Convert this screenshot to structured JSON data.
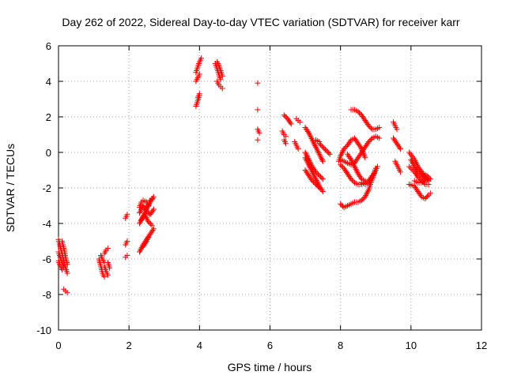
{
  "chart_data": {
    "type": "scatter",
    "title": "Day 262 of 2022, Sidereal Day-to-day VTEC variation (SDTVAR) for receiver karr",
    "xlabel": "GPS time / hours",
    "ylabel": "SDTVAR / TECUs",
    "xlim": [
      0,
      12
    ],
    "ylim": [
      -10,
      6
    ],
    "x_ticks": [
      0,
      2,
      4,
      6,
      8,
      10,
      12
    ],
    "y_ticks": [
      -10,
      -8,
      -6,
      -4,
      -2,
      0,
      2,
      4,
      6
    ],
    "grid": true,
    "marker": "+",
    "series_color": "#ff0000",
    "segments": [
      [
        [
          0.0,
          -4.9
        ],
        [
          0.05,
          -5.3
        ],
        [
          0.1,
          -5.7
        ],
        [
          0.15,
          -6.1
        ],
        [
          0.2,
          -6.5
        ],
        [
          0.25,
          -6.8
        ]
      ],
      [
        [
          0.0,
          -5.6
        ],
        [
          0.05,
          -5.9
        ],
        [
          0.1,
          -6.2
        ],
        [
          0.15,
          -6.5
        ]
      ],
      [
        [
          0.0,
          -6.1
        ],
        [
          0.05,
          -6.4
        ],
        [
          0.1,
          -6.6
        ]
      ],
      [
        [
          0.1,
          -5.0
        ],
        [
          0.15,
          -5.4
        ],
        [
          0.2,
          -5.9
        ],
        [
          0.25,
          -6.3
        ]
      ],
      [
        [
          0.15,
          -7.7
        ],
        [
          0.2,
          -7.8
        ],
        [
          0.25,
          -7.9
        ]
      ],
      [
        [
          1.15,
          -6.0
        ],
        [
          1.2,
          -6.4
        ],
        [
          1.25,
          -6.8
        ],
        [
          1.3,
          -7.0
        ]
      ],
      [
        [
          1.2,
          -5.8
        ],
        [
          1.25,
          -6.0
        ],
        [
          1.3,
          -6.2
        ]
      ],
      [
        [
          1.3,
          -6.4
        ],
        [
          1.35,
          -6.7
        ],
        [
          1.4,
          -6.9
        ]
      ],
      [
        [
          1.3,
          -5.7
        ],
        [
          1.35,
          -5.5
        ],
        [
          1.4,
          -5.4
        ]
      ],
      [
        [
          1.4,
          -6.2
        ],
        [
          1.45,
          -6.5
        ]
      ],
      [
        [
          1.9,
          -3.7
        ],
        [
          1.95,
          -3.5
        ]
      ],
      [
        [
          1.9,
          -5.2
        ],
        [
          1.95,
          -5.0
        ]
      ],
      [
        [
          1.9,
          -5.9
        ],
        [
          1.95,
          -5.8
        ]
      ],
      [
        [
          2.3,
          -4.0
        ],
        [
          2.4,
          -3.6
        ],
        [
          2.5,
          -3.2
        ],
        [
          2.6,
          -2.8
        ],
        [
          2.7,
          -2.5
        ]
      ],
      [
        [
          2.3,
          -3.1
        ],
        [
          2.35,
          -2.8
        ],
        [
          2.4,
          -2.7
        ],
        [
          2.5,
          -2.8
        ],
        [
          2.55,
          -3.0
        ],
        [
          2.6,
          -2.7
        ],
        [
          2.65,
          -2.6
        ]
      ],
      [
        [
          2.3,
          -3.4
        ],
        [
          2.4,
          -3.0
        ],
        [
          2.5,
          -3.3
        ],
        [
          2.6,
          -3.5
        ],
        [
          2.7,
          -3.2
        ]
      ],
      [
        [
          2.35,
          -3.8
        ],
        [
          2.45,
          -3.5
        ],
        [
          2.55,
          -3.9
        ],
        [
          2.65,
          -4.1
        ]
      ],
      [
        [
          2.3,
          -5.6
        ],
        [
          2.4,
          -5.2
        ],
        [
          2.5,
          -4.9
        ],
        [
          2.6,
          -4.6
        ],
        [
          2.7,
          -4.3
        ]
      ],
      [
        [
          2.4,
          -5.3
        ],
        [
          2.5,
          -5.0
        ],
        [
          2.55,
          -4.8
        ]
      ],
      [
        [
          3.9,
          2.6
        ],
        [
          3.95,
          2.9
        ],
        [
          4.0,
          3.2
        ]
      ],
      [
        [
          3.95,
          3.1
        ],
        [
          4.0,
          3.3
        ]
      ],
      [
        [
          3.9,
          4.5
        ],
        [
          3.95,
          4.8
        ],
        [
          4.0,
          5.1
        ],
        [
          4.05,
          5.3
        ]
      ],
      [
        [
          3.9,
          4.0
        ],
        [
          3.95,
          4.2
        ],
        [
          4.0,
          4.4
        ]
      ],
      [
        [
          4.45,
          5.0
        ],
        [
          4.5,
          4.7
        ],
        [
          4.55,
          4.4
        ],
        [
          4.6,
          4.1
        ]
      ],
      [
        [
          4.5,
          5.1
        ],
        [
          4.55,
          4.9
        ],
        [
          4.6,
          4.6
        ],
        [
          4.65,
          4.3
        ]
      ],
      [
        [
          4.5,
          4.0
        ],
        [
          4.55,
          3.8
        ],
        [
          4.6,
          3.7
        ],
        [
          4.65,
          3.6
        ]
      ],
      [
        [
          5.65,
          3.9
        ]
      ],
      [
        [
          5.65,
          2.4
        ]
      ],
      [
        [
          5.65,
          1.3
        ],
        [
          5.7,
          1.1
        ]
      ],
      [
        [
          5.65,
          0.7
        ]
      ],
      [
        [
          6.4,
          2.1
        ],
        [
          6.5,
          1.9
        ],
        [
          6.6,
          1.6
        ]
      ],
      [
        [
          6.35,
          1.2
        ],
        [
          6.4,
          1.0
        ],
        [
          6.45,
          0.9
        ]
      ],
      [
        [
          6.4,
          0.7
        ],
        [
          6.45,
          0.5
        ]
      ],
      [
        [
          6.75,
          1.9
        ],
        [
          6.8,
          1.8
        ],
        [
          6.85,
          1.7
        ]
      ],
      [
        [
          6.7,
          0.6
        ],
        [
          6.75,
          0.4
        ],
        [
          6.8,
          0.2
        ]
      ],
      [
        [
          7.0,
          1.4
        ],
        [
          7.1,
          1.1
        ],
        [
          7.2,
          0.7
        ],
        [
          7.3,
          0.3
        ],
        [
          7.4,
          -0.1
        ],
        [
          7.5,
          -0.5
        ]
      ],
      [
        [
          7.0,
          -0.3
        ],
        [
          7.1,
          -0.7
        ],
        [
          7.2,
          -1.1
        ],
        [
          7.3,
          -1.5
        ],
        [
          7.4,
          -1.9
        ],
        [
          7.5,
          -2.2
        ]
      ],
      [
        [
          7.0,
          -1.0
        ],
        [
          7.1,
          -1.3
        ],
        [
          7.2,
          -1.6
        ],
        [
          7.3,
          -1.8
        ],
        [
          7.4,
          -2.0
        ]
      ],
      [
        [
          7.0,
          0.0
        ],
        [
          7.1,
          -0.4
        ],
        [
          7.2,
          -0.8
        ],
        [
          7.3,
          -1.1
        ],
        [
          7.4,
          -1.3
        ],
        [
          7.5,
          -1.5
        ]
      ],
      [
        [
          7.4,
          0.5
        ],
        [
          7.5,
          0.3
        ],
        [
          7.6,
          0.1
        ],
        [
          7.7,
          -0.1
        ]
      ],
      [
        [
          7.3,
          0.7
        ],
        [
          7.4,
          0.6
        ]
      ],
      [
        [
          8.0,
          -2.9
        ],
        [
          8.1,
          -3.1
        ],
        [
          8.2,
          -3.0
        ],
        [
          8.3,
          -2.9
        ],
        [
          8.4,
          -2.8
        ],
        [
          8.5,
          -2.8
        ],
        [
          8.6,
          -2.7
        ],
        [
          8.7,
          -2.5
        ],
        [
          8.8,
          -2.1
        ],
        [
          8.9,
          -1.5
        ],
        [
          9.0,
          -0.9
        ]
      ],
      [
        [
          7.95,
          -0.5
        ],
        [
          8.0,
          -0.2
        ],
        [
          8.1,
          0.2
        ],
        [
          8.2,
          0.4
        ],
        [
          8.3,
          0.7
        ],
        [
          8.4,
          0.8
        ],
        [
          8.5,
          0.5
        ],
        [
          8.6,
          0.2
        ],
        [
          8.7,
          -0.3
        ]
      ],
      [
        [
          8.0,
          -0.7
        ],
        [
          8.1,
          -0.9
        ],
        [
          8.2,
          -1.2
        ],
        [
          8.3,
          -1.5
        ],
        [
          8.4,
          -1.7
        ],
        [
          8.5,
          -1.8
        ],
        [
          8.6,
          -1.8
        ],
        [
          8.7,
          -1.7
        ],
        [
          8.8,
          -1.6
        ],
        [
          8.9,
          -1.3
        ]
      ],
      [
        [
          8.0,
          -0.4
        ],
        [
          8.1,
          -0.5
        ],
        [
          8.2,
          -0.6
        ],
        [
          8.3,
          -0.7
        ],
        [
          8.4,
          -0.6
        ],
        [
          8.5,
          -0.3
        ],
        [
          8.6,
          0.0
        ],
        [
          8.7,
          0.3
        ],
        [
          8.8,
          0.6
        ],
        [
          8.9,
          0.8
        ],
        [
          9.0,
          0.9
        ],
        [
          9.1,
          0.8
        ]
      ],
      [
        [
          8.2,
          -0.1
        ],
        [
          8.3,
          -0.4
        ],
        [
          8.4,
          -0.8
        ],
        [
          8.5,
          -1.2
        ],
        [
          8.6,
          -1.5
        ],
        [
          8.7,
          -1.6
        ]
      ],
      [
        [
          8.3,
          2.4
        ],
        [
          8.4,
          2.4
        ],
        [
          8.5,
          2.3
        ],
        [
          8.6,
          2.1
        ],
        [
          8.7,
          1.8
        ],
        [
          8.8,
          1.5
        ],
        [
          8.9,
          1.3
        ],
        [
          9.0,
          1.3
        ],
        [
          9.1,
          1.4
        ]
      ],
      [
        [
          8.6,
          -1.7
        ],
        [
          8.7,
          -1.8
        ],
        [
          8.8,
          -1.7
        ],
        [
          8.9,
          -1.4
        ],
        [
          9.0,
          -1.0
        ],
        [
          9.05,
          -0.8
        ]
      ],
      [
        [
          9.5,
          1.7
        ],
        [
          9.55,
          1.5
        ],
        [
          9.6,
          1.3
        ]
      ],
      [
        [
          9.5,
          0.8
        ],
        [
          9.6,
          0.5
        ],
        [
          9.7,
          0.2
        ]
      ],
      [
        [
          9.55,
          -0.5
        ],
        [
          9.6,
          -0.7
        ],
        [
          9.65,
          -0.9
        ],
        [
          9.7,
          -1.1
        ]
      ],
      [
        [
          9.95,
          0.0
        ],
        [
          10.1,
          -0.4
        ],
        [
          10.2,
          -0.8
        ],
        [
          10.3,
          -1.1
        ],
        [
          10.4,
          -1.4
        ],
        [
          10.5,
          -1.6
        ]
      ],
      [
        [
          9.95,
          -0.8
        ],
        [
          10.1,
          -1.1
        ],
        [
          10.2,
          -1.4
        ],
        [
          10.3,
          -1.6
        ],
        [
          10.4,
          -1.8
        ],
        [
          10.5,
          -1.8
        ]
      ],
      [
        [
          9.95,
          -1.8
        ],
        [
          10.1,
          -1.9
        ],
        [
          10.2,
          -2.2
        ],
        [
          10.3,
          -2.5
        ],
        [
          10.4,
          -2.6
        ],
        [
          10.5,
          -2.4
        ],
        [
          10.55,
          -2.3
        ]
      ],
      [
        [
          10.0,
          -0.4
        ],
        [
          10.1,
          -0.8
        ],
        [
          10.2,
          -1.1
        ],
        [
          10.3,
          -1.3
        ],
        [
          10.4,
          -1.5
        ],
        [
          10.5,
          -1.6
        ]
      ],
      [
        [
          10.1,
          -1.6
        ],
        [
          10.2,
          -1.7
        ],
        [
          10.3,
          -1.7
        ],
        [
          10.4,
          -1.6
        ]
      ],
      [
        [
          10.35,
          -1.2
        ],
        [
          10.45,
          -1.3
        ],
        [
          10.55,
          -1.5
        ]
      ]
    ]
  }
}
